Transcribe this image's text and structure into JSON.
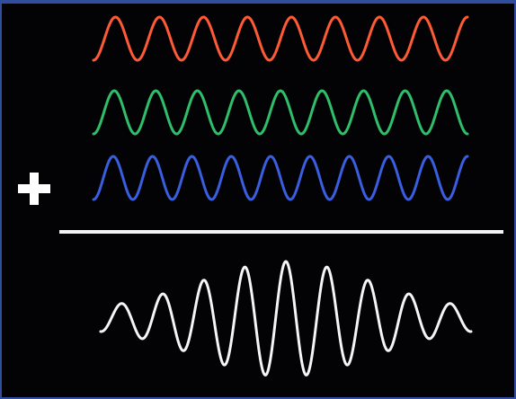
{
  "diagram": {
    "operator_symbol": "+",
    "waves": [
      {
        "name": "red-wave",
        "color": "#ff5a36",
        "cycles": 8.5
      },
      {
        "name": "green-wave",
        "color": "#2fbf6a",
        "cycles": 9.0
      },
      {
        "name": "blue-wave",
        "color": "#3a5ee0",
        "cycles": 9.5
      }
    ],
    "sum_wave": {
      "name": "sum-wave",
      "color": "#f5f5f5"
    },
    "colors": {
      "background": "#030305",
      "frame": "#2f4f9e",
      "plus": "#ffffff",
      "sum_line": "#f4f4f4"
    }
  }
}
